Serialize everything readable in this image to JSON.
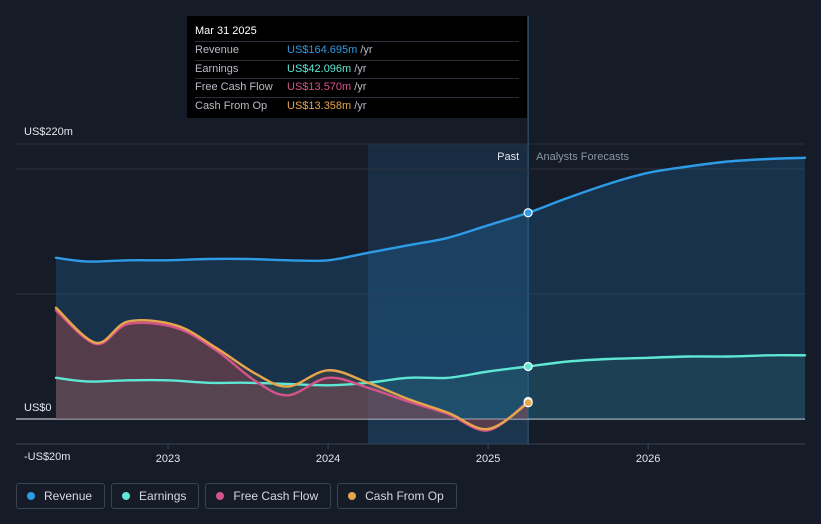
{
  "tooltip": {
    "date": "Mar 31 2025",
    "rows": [
      {
        "label": "Revenue",
        "value": "US$164.695m",
        "unit": "/yr",
        "color": "#2d9be6"
      },
      {
        "label": "Earnings",
        "value": "US$42.096m",
        "unit": "/yr",
        "color": "#5ee8d4"
      },
      {
        "label": "Free Cash Flow",
        "value": "US$13.570m",
        "unit": "/yr",
        "color": "#d6538a"
      },
      {
        "label": "Cash From Op",
        "value": "US$13.358m",
        "unit": "/yr",
        "color": "#e6a64e"
      }
    ]
  },
  "chart_data": {
    "type": "line",
    "xlabel": "",
    "ylabel": "",
    "x_range": [
      2022.25,
      2026.98
    ],
    "ylim": [
      -20,
      220
    ],
    "y_tick_labels": [
      {
        "value": 220,
        "label": "US$220m"
      },
      {
        "value": 0,
        "label": "US$0"
      },
      {
        "value": -20,
        "label": "-US$20m"
      }
    ],
    "x_tick_labels": [
      {
        "value": 2023,
        "label": "2023"
      },
      {
        "value": 2024,
        "label": "2024"
      },
      {
        "value": 2025,
        "label": "2025"
      },
      {
        "value": 2026,
        "label": "2026"
      }
    ],
    "past_label": "Past",
    "forecast_label": "Analysts Forecasts",
    "past_start": 2024.25,
    "divider": 2025.25,
    "series": [
      {
        "name": "Revenue",
        "color": "#2d9be6",
        "forecast": true,
        "points": [
          [
            2022.3,
            129
          ],
          [
            2022.5,
            126
          ],
          [
            2022.75,
            127
          ],
          [
            2023,
            127
          ],
          [
            2023.25,
            128
          ],
          [
            2023.5,
            128
          ],
          [
            2023.75,
            127
          ],
          [
            2024,
            127
          ],
          [
            2024.25,
            133
          ],
          [
            2024.5,
            139
          ],
          [
            2024.75,
            145
          ],
          [
            2025,
            155
          ],
          [
            2025.25,
            165
          ],
          [
            2025.5,
            177
          ],
          [
            2025.75,
            188
          ],
          [
            2026,
            197
          ],
          [
            2026.25,
            202
          ],
          [
            2026.5,
            206
          ],
          [
            2026.75,
            208
          ],
          [
            2026.98,
            209
          ]
        ]
      },
      {
        "name": "Earnings",
        "color": "#5ee8d4",
        "forecast": true,
        "points": [
          [
            2022.3,
            33
          ],
          [
            2022.5,
            30
          ],
          [
            2022.75,
            31
          ],
          [
            2023,
            31
          ],
          [
            2023.25,
            29
          ],
          [
            2023.5,
            29
          ],
          [
            2023.75,
            28
          ],
          [
            2024,
            27
          ],
          [
            2024.25,
            29
          ],
          [
            2024.5,
            33
          ],
          [
            2024.75,
            33
          ],
          [
            2025,
            38
          ],
          [
            2025.25,
            42
          ],
          [
            2025.5,
            46
          ],
          [
            2025.75,
            48
          ],
          [
            2026,
            49
          ],
          [
            2026.25,
            50
          ],
          [
            2026.5,
            50
          ],
          [
            2026.75,
            51
          ],
          [
            2026.98,
            51
          ]
        ]
      },
      {
        "name": "Free Cash Flow",
        "color": "#d6538a",
        "forecast": false,
        "points": [
          [
            2022.3,
            87
          ],
          [
            2022.55,
            60
          ],
          [
            2022.75,
            76
          ],
          [
            2023.05,
            73
          ],
          [
            2023.3,
            55
          ],
          [
            2023.55,
            30
          ],
          [
            2023.75,
            19
          ],
          [
            2024,
            33
          ],
          [
            2024.25,
            25
          ],
          [
            2024.5,
            14
          ],
          [
            2024.75,
            4
          ],
          [
            2025,
            -9
          ],
          [
            2025.25,
            14
          ]
        ]
      },
      {
        "name": "Cash From Op",
        "color": "#e6a64e",
        "forecast": false,
        "points": [
          [
            2022.3,
            89
          ],
          [
            2022.55,
            61
          ],
          [
            2022.75,
            78
          ],
          [
            2023.05,
            75
          ],
          [
            2023.3,
            57
          ],
          [
            2023.55,
            36
          ],
          [
            2023.75,
            26
          ],
          [
            2024,
            39
          ],
          [
            2024.25,
            29
          ],
          [
            2024.5,
            16
          ],
          [
            2024.75,
            5
          ],
          [
            2025,
            -8
          ],
          [
            2025.25,
            13
          ]
        ]
      }
    ]
  },
  "legend": [
    {
      "label": "Revenue",
      "color": "#2d9be6"
    },
    {
      "label": "Earnings",
      "color": "#5ee8d4"
    },
    {
      "label": "Free Cash Flow",
      "color": "#d6538a"
    },
    {
      "label": "Cash From Op",
      "color": "#e6a64e"
    }
  ]
}
